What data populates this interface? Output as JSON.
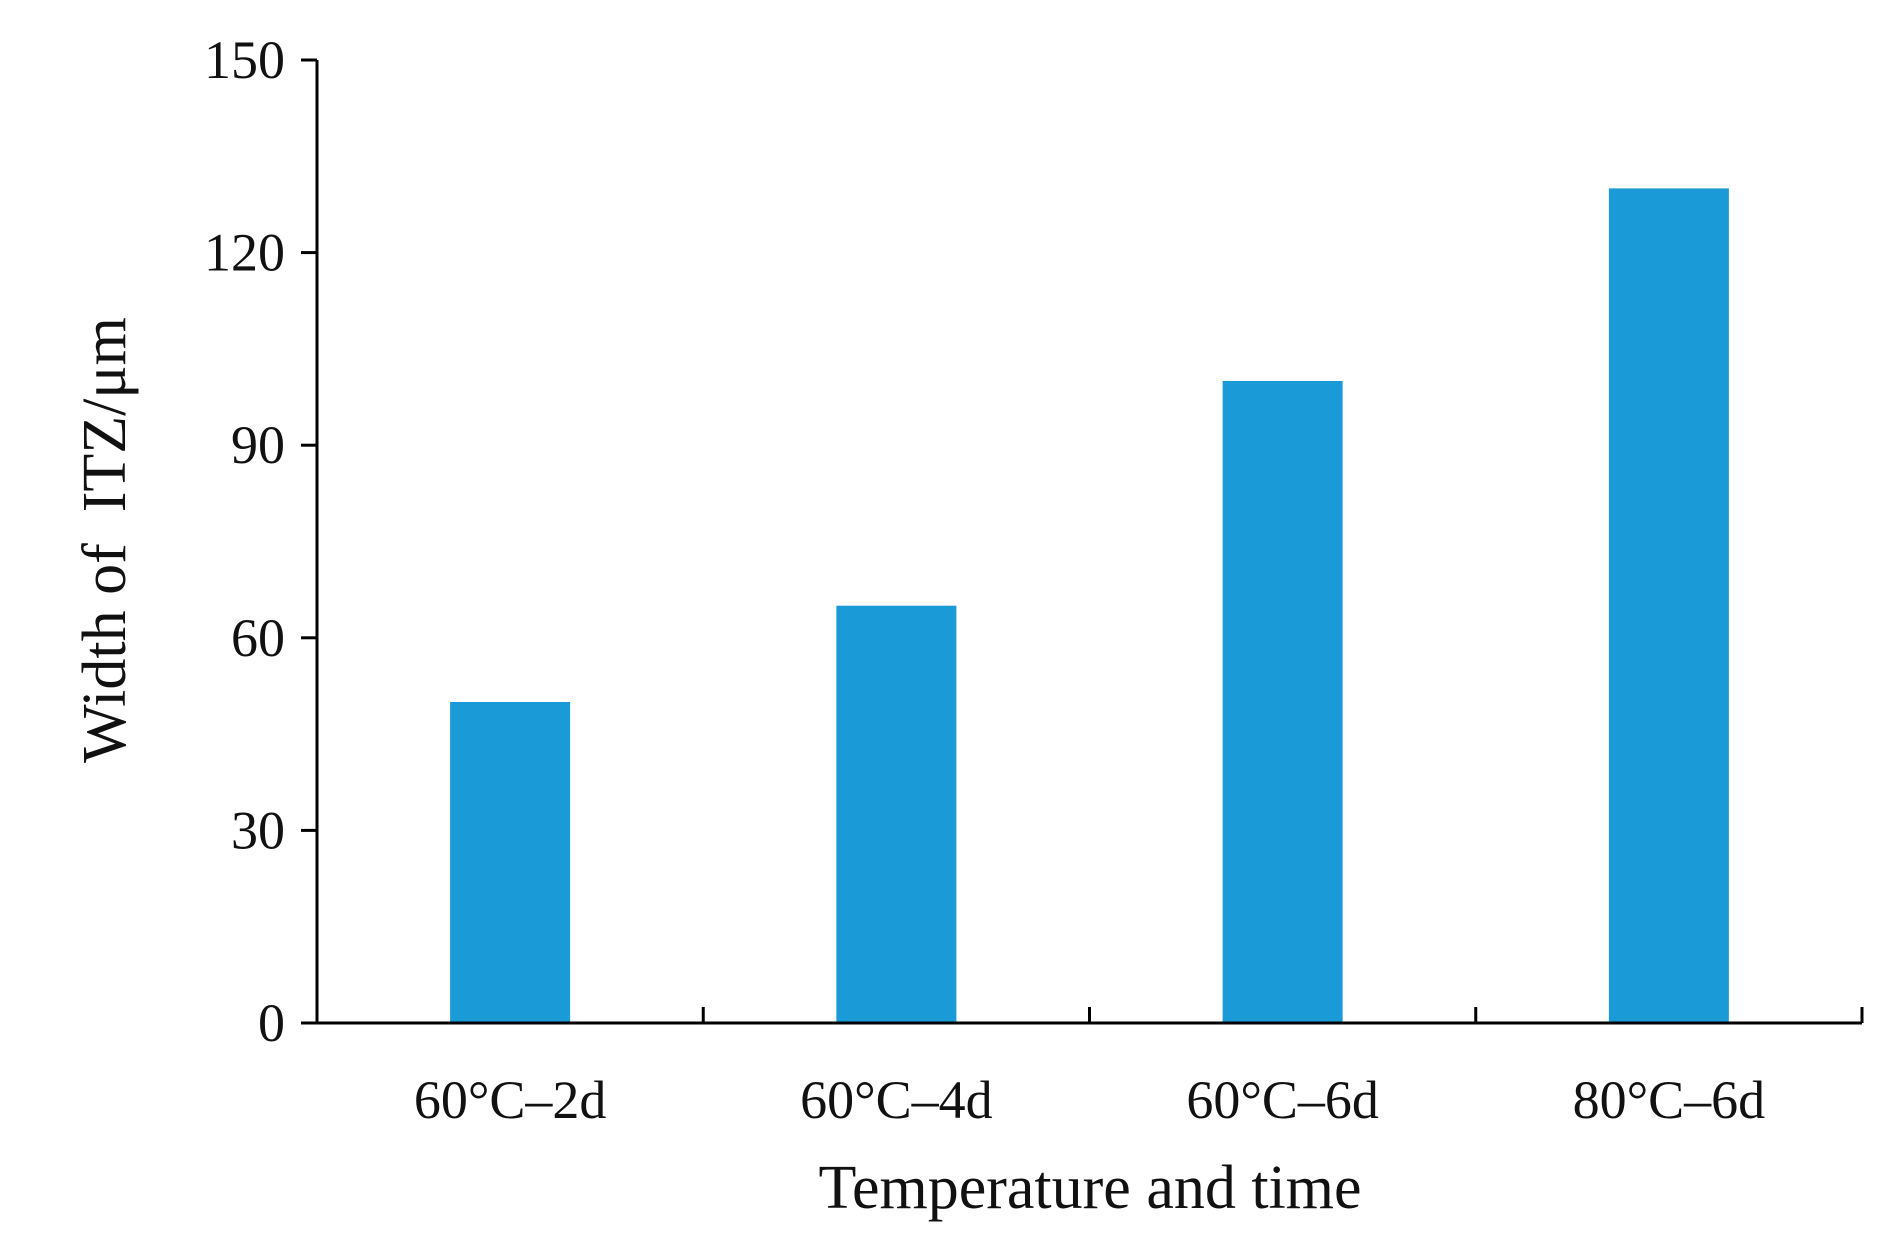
{
  "chart_data": {
    "type": "bar",
    "categories": [
      "60°C–2d",
      "60°C–4d",
      "60°C–6d",
      "80°C–6d"
    ],
    "values": [
      50,
      65,
      100,
      130
    ],
    "xlabel": "Temperature and time",
    "ylabel": "Width of  ITZ/μm",
    "ylim": [
      0,
      150
    ],
    "yticks": [
      0,
      30,
      60,
      90,
      120,
      150
    ],
    "grid": false,
    "legend": "none",
    "bar_color": "#1a9ad6"
  }
}
